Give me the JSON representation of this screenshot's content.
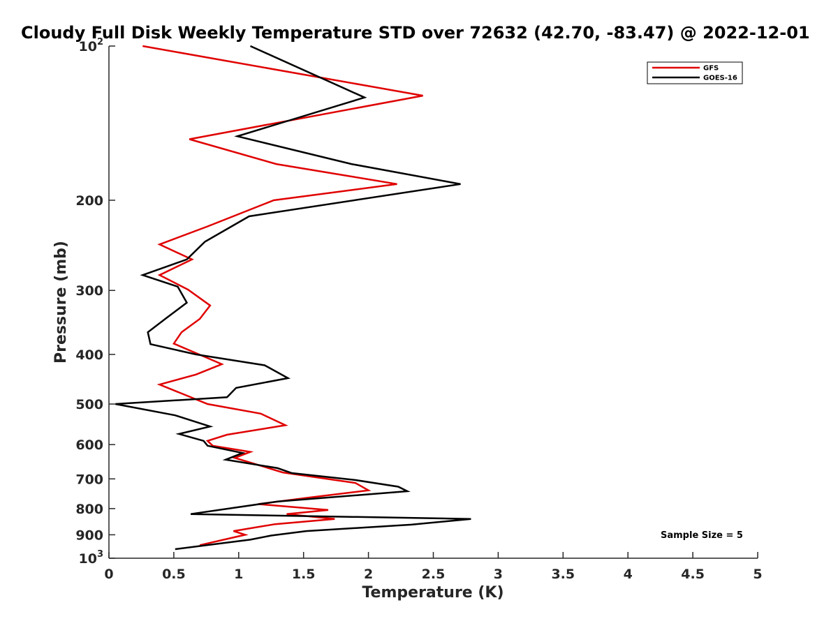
{
  "chart_data": {
    "type": "line",
    "title": "Cloudy Full Disk Weekly Temperature STD over 72632 (42.70, -83.47) @ 2022-12-01",
    "xlabel": "Temperature (K)",
    "ylabel": "Pressure (mb)",
    "xlim": [
      0,
      5
    ],
    "ylim": [
      100,
      1000
    ],
    "y_scale": "log",
    "y_reversed": true,
    "x_ticks": [
      0,
      0.5,
      1,
      1.5,
      2,
      2.5,
      3,
      3.5,
      4,
      4.5,
      5
    ],
    "x_tick_labels": [
      "0",
      "0.5",
      "1",
      "1.5",
      "2",
      "2.5",
      "3",
      "3.5",
      "4",
      "4.5",
      "5"
    ],
    "y_ticks": [
      100,
      200,
      300,
      400,
      500,
      600,
      700,
      800,
      900,
      1000
    ],
    "y_tick_labels": [
      {
        "base": "10",
        "exp": "2"
      },
      {
        "base": "200",
        "exp": ""
      },
      {
        "base": "300",
        "exp": ""
      },
      {
        "base": "400",
        "exp": ""
      },
      {
        "base": "500",
        "exp": ""
      },
      {
        "base": "600",
        "exp": ""
      },
      {
        "base": "700",
        "exp": ""
      },
      {
        "base": "800",
        "exp": ""
      },
      {
        "base": "900",
        "exp": ""
      },
      {
        "base": "10",
        "exp": "3"
      }
    ],
    "grid": false,
    "legend_position": "top-right",
    "series": [
      {
        "name": "GFS",
        "color": "#e00000",
        "points": [
          {
            "x": 0.26,
            "p": 100
          },
          {
            "x": 2.42,
            "p": 125
          },
          {
            "x": 0.62,
            "p": 152
          },
          {
            "x": 1.29,
            "p": 170
          },
          {
            "x": 2.22,
            "p": 186
          },
          {
            "x": 1.27,
            "p": 200
          },
          {
            "x": 0.76,
            "p": 225
          },
          {
            "x": 0.39,
            "p": 244
          },
          {
            "x": 0.64,
            "p": 261
          },
          {
            "x": 0.39,
            "p": 280
          },
          {
            "x": 0.61,
            "p": 299
          },
          {
            "x": 0.78,
            "p": 321
          },
          {
            "x": 0.7,
            "p": 341
          },
          {
            "x": 0.56,
            "p": 362
          },
          {
            "x": 0.5,
            "p": 381
          },
          {
            "x": 0.87,
            "p": 418
          },
          {
            "x": 0.67,
            "p": 438
          },
          {
            "x": 0.39,
            "p": 458
          },
          {
            "x": 0.76,
            "p": 500
          },
          {
            "x": 1.17,
            "p": 522
          },
          {
            "x": 1.36,
            "p": 550
          },
          {
            "x": 0.91,
            "p": 574
          },
          {
            "x": 0.76,
            "p": 590
          },
          {
            "x": 0.8,
            "p": 603
          },
          {
            "x": 1.09,
            "p": 620
          },
          {
            "x": 0.97,
            "p": 637
          },
          {
            "x": 1.34,
            "p": 680
          },
          {
            "x": 1.9,
            "p": 713
          },
          {
            "x": 2.0,
            "p": 737
          },
          {
            "x": 1.53,
            "p": 762
          },
          {
            "x": 1.15,
            "p": 784
          },
          {
            "x": 1.69,
            "p": 805
          },
          {
            "x": 1.37,
            "p": 820
          },
          {
            "x": 1.74,
            "p": 838
          },
          {
            "x": 1.28,
            "p": 858
          },
          {
            "x": 0.96,
            "p": 885
          },
          {
            "x": 1.05,
            "p": 900
          },
          {
            "x": 0.7,
            "p": 943
          }
        ]
      },
      {
        "name": "GOES-16",
        "color": "#000000",
        "points": [
          {
            "x": 1.09,
            "p": 100
          },
          {
            "x": 1.97,
            "p": 126
          },
          {
            "x": 0.99,
            "p": 150
          },
          {
            "x": 1.87,
            "p": 170
          },
          {
            "x": 2.71,
            "p": 186
          },
          {
            "x": 1.08,
            "p": 215
          },
          {
            "x": 0.74,
            "p": 241
          },
          {
            "x": 0.6,
            "p": 261
          },
          {
            "x": 0.26,
            "p": 280
          },
          {
            "x": 0.53,
            "p": 295
          },
          {
            "x": 0.6,
            "p": 317
          },
          {
            "x": 0.44,
            "p": 340
          },
          {
            "x": 0.3,
            "p": 362
          },
          {
            "x": 0.32,
            "p": 382
          },
          {
            "x": 0.67,
            "p": 400
          },
          {
            "x": 1.2,
            "p": 420
          },
          {
            "x": 1.38,
            "p": 445
          },
          {
            "x": 0.98,
            "p": 465
          },
          {
            "x": 0.91,
            "p": 485
          },
          {
            "x": 0.05,
            "p": 500
          },
          {
            "x": 0.51,
            "p": 526
          },
          {
            "x": 0.78,
            "p": 553
          },
          {
            "x": 0.54,
            "p": 572
          },
          {
            "x": 0.73,
            "p": 590
          },
          {
            "x": 0.76,
            "p": 603
          },
          {
            "x": 1.03,
            "p": 623
          },
          {
            "x": 0.9,
            "p": 642
          },
          {
            "x": 1.3,
            "p": 667
          },
          {
            "x": 1.41,
            "p": 682
          },
          {
            "x": 1.89,
            "p": 703
          },
          {
            "x": 2.23,
            "p": 725
          },
          {
            "x": 2.3,
            "p": 740
          },
          {
            "x": 1.3,
            "p": 775
          },
          {
            "x": 0.63,
            "p": 820
          },
          {
            "x": 2.79,
            "p": 838
          },
          {
            "x": 2.33,
            "p": 860
          },
          {
            "x": 1.52,
            "p": 885
          },
          {
            "x": 1.25,
            "p": 903
          },
          {
            "x": 1.09,
            "p": 920
          },
          {
            "x": 0.51,
            "p": 960
          }
        ]
      }
    ],
    "annotation": "Sample Size = 5"
  }
}
